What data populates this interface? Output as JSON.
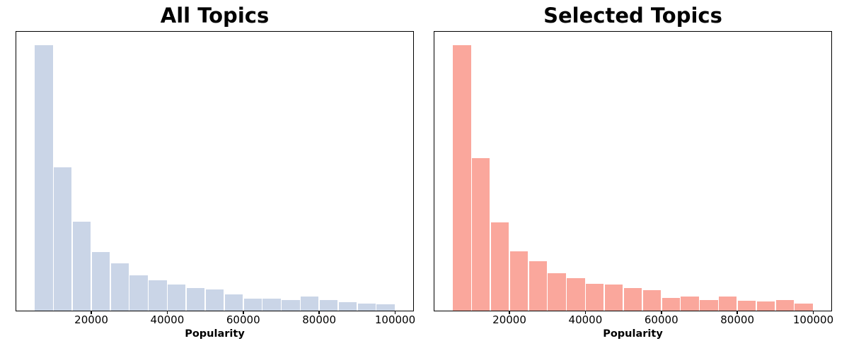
{
  "figure": {
    "background_color": "#ffffff",
    "text_color": "#000000"
  },
  "chart_data": [
    {
      "type": "bar",
      "subtype": "histogram",
      "title": "All Topics",
      "xlabel": "Popularity",
      "bar_color": "#cad5e7",
      "bar_edge_color": "#ffffff",
      "bin_start": 5000,
      "bin_width": 5000,
      "n_bins": 19,
      "bin_edges": [
        5000,
        10000,
        15000,
        20000,
        25000,
        30000,
        35000,
        40000,
        45000,
        50000,
        55000,
        60000,
        65000,
        70000,
        75000,
        80000,
        85000,
        90000,
        95000,
        100000
      ],
      "values": [
        1.0,
        0.54,
        0.335,
        0.22,
        0.177,
        0.132,
        0.113,
        0.098,
        0.086,
        0.079,
        0.06,
        0.044,
        0.044,
        0.041,
        0.052,
        0.039,
        0.031,
        0.027,
        0.023
      ],
      "values_note": "relative bar heights, tallest bin normalized to 1.0 (no y-axis shown)",
      "xlim": [
        250,
        104750
      ],
      "y_axis_visible": false,
      "grid": false,
      "tick_values": [
        20000,
        40000,
        60000,
        80000,
        100000
      ],
      "tick_labels": [
        "20000",
        "40000",
        "60000",
        "80000",
        "100000"
      ]
    },
    {
      "type": "bar",
      "subtype": "histogram",
      "title": "Selected Topics",
      "xlabel": "Popularity",
      "bar_color": "#faa79c",
      "bar_edge_color": "#ffffff",
      "bin_start": 5000,
      "bin_width": 5000,
      "n_bins": 19,
      "bin_edges": [
        5000,
        10000,
        15000,
        20000,
        25000,
        30000,
        35000,
        40000,
        45000,
        50000,
        55000,
        60000,
        65000,
        70000,
        75000,
        80000,
        85000,
        90000,
        95000,
        100000
      ],
      "values": [
        1.0,
        0.574,
        0.333,
        0.224,
        0.186,
        0.141,
        0.122,
        0.102,
        0.098,
        0.084,
        0.078,
        0.047,
        0.054,
        0.041,
        0.054,
        0.037,
        0.034,
        0.039,
        0.027
      ],
      "values_note": "relative bar heights, tallest bin normalized to 1.0 (no y-axis shown)",
      "xlim": [
        250,
        104750
      ],
      "y_axis_visible": false,
      "grid": false,
      "tick_values": [
        20000,
        40000,
        60000,
        80000,
        100000
      ],
      "tick_labels": [
        "20000",
        "40000",
        "60000",
        "80000",
        "100000"
      ]
    }
  ]
}
